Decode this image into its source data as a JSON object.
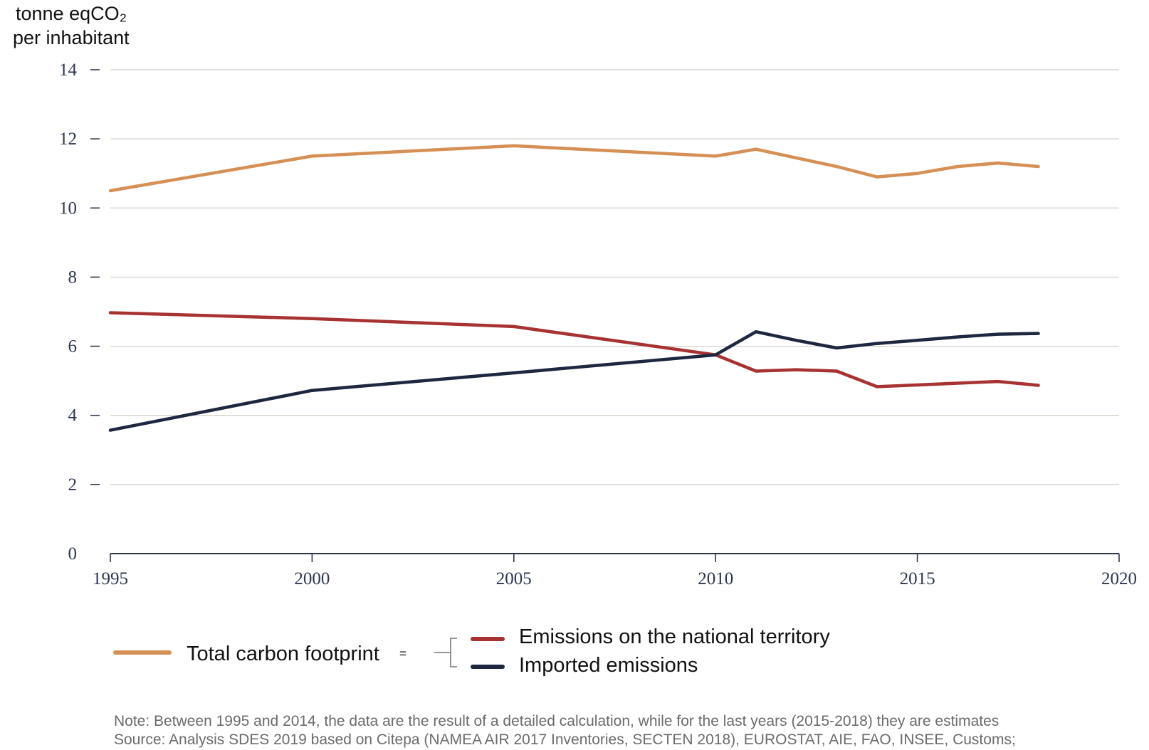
{
  "chart_data": {
    "type": "line",
    "title": "",
    "xlabel": "",
    "ylabel_lines": [
      "tonne eqCO₂",
      "per inhabitant"
    ],
    "xlim": [
      1995,
      2020
    ],
    "ylim": [
      0,
      14
    ],
    "x_ticks": [
      1995,
      2000,
      2005,
      2010,
      2015,
      2020
    ],
    "y_ticks": [
      0,
      2,
      4,
      6,
      8,
      10,
      12,
      14
    ],
    "grid": true,
    "series": [
      {
        "name": "Total carbon footprint",
        "color": "#d68f55",
        "x": [
          1995,
          2000,
          2005,
          2010,
          2011,
          2012,
          2013,
          2014,
          2015,
          2016,
          2017,
          2018
        ],
        "y": [
          10.5,
          11.5,
          11.8,
          11.5,
          11.7,
          11.45,
          11.2,
          10.9,
          11.0,
          11.2,
          11.3,
          11.2
        ]
      },
      {
        "name": "Emissions on the national territory",
        "color": "#a83232",
        "x": [
          1995,
          2000,
          2005,
          2010,
          2011,
          2012,
          2013,
          2014,
          2015,
          2016,
          2017,
          2018
        ],
        "y": [
          6.97,
          6.8,
          6.57,
          5.75,
          5.28,
          5.32,
          5.28,
          4.83,
          4.88,
          4.93,
          4.98,
          4.87
        ]
      },
      {
        "name": "Imported emissions",
        "color": "#1e2740",
        "x": [
          1995,
          2000,
          2005,
          2010,
          2011,
          2012,
          2013,
          2014,
          2015,
          2016,
          2017,
          2018
        ],
        "y": [
          3.57,
          4.72,
          5.23,
          5.75,
          6.42,
          6.17,
          5.95,
          6.08,
          6.17,
          6.27,
          6.35,
          6.37
        ]
      }
    ],
    "legend": {
      "placement": "bottom",
      "equals_sign": "="
    },
    "notes": [
      "Note: Between 1995 and 2014, the data are the result of a detailed calculation, while for the last years (2015-2018) they are estimates",
      "Source: Analysis SDES 2019 based on Citepa (NAMEA AIR 2017 Inventories, SECTEN 2018), EUROSTAT, AIE, FAO, INSEE, Customs;"
    ],
    "colors": {
      "grid": "#cfcdc5",
      "axis": "#2d3550",
      "bracket": "#777777"
    }
  }
}
